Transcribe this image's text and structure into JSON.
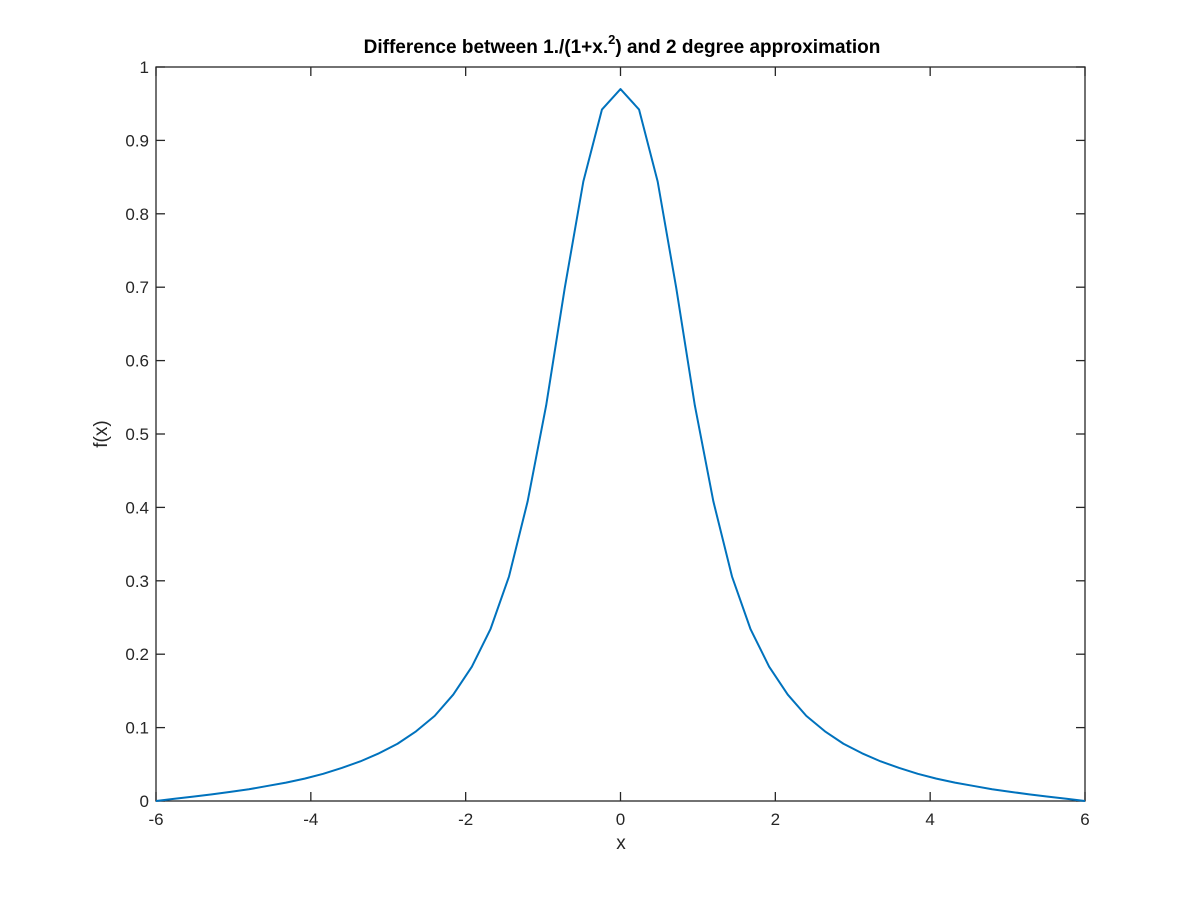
{
  "chart_data": {
    "type": "line",
    "title": {
      "main": "Difference between 1./(1+x.",
      "sup": "2",
      "rest": ") and 2 degree approximation"
    },
    "xlabel": "x",
    "ylabel": "f(x)",
    "xlim": [
      -6,
      6
    ],
    "ylim": [
      0,
      1
    ],
    "xticks": [
      -6,
      -4,
      -2,
      0,
      2,
      4,
      6
    ],
    "xtick_labels": [
      "-6",
      "-4",
      "-2",
      "0",
      "2",
      "4",
      "6"
    ],
    "yticks": [
      0,
      0.1,
      0.2,
      0.3,
      0.4,
      0.5,
      0.6,
      0.7,
      0.8,
      0.9,
      1
    ],
    "ytick_labels": [
      "0",
      "0.1",
      "0.2",
      "0.3",
      "0.4",
      "0.5",
      "0.6",
      "0.7",
      "0.8",
      "0.9",
      "1"
    ],
    "grid": false,
    "box": true,
    "line_color": "#0072BD",
    "axis_color": "#262626",
    "series": [
      {
        "x": [
          -6,
          -5.76,
          -5.52,
          -5.28,
          -5.04,
          -4.8,
          -4.56,
          -4.32,
          -4.08,
          -3.84,
          -3.6,
          -3.36,
          -3.12,
          -2.88,
          -2.64,
          -2.4,
          -2.16,
          -1.92,
          -1.68,
          -1.44,
          -1.2,
          -0.96,
          -0.72,
          -0.48,
          -0.24,
          0,
          0.24,
          0.48,
          0.72,
          0.96,
          1.2,
          1.44,
          1.68,
          1.92,
          2.16,
          2.4,
          2.64,
          2.88,
          3.12,
          3.36,
          3.6,
          3.84,
          4.08,
          4.32,
          4.56,
          4.8,
          5.04,
          5.28,
          5.52,
          5.76,
          6
        ],
        "y": [
          0,
          0.003,
          0.006,
          0.009,
          0.0125,
          0.016,
          0.0205,
          0.025,
          0.0305,
          0.037,
          0.045,
          0.054,
          0.065,
          0.078,
          0.095,
          0.116,
          0.145,
          0.183,
          0.234,
          0.306,
          0.408,
          0.539,
          0.699,
          0.844,
          0.942,
          0.97,
          0.942,
          0.844,
          0.699,
          0.539,
          0.408,
          0.306,
          0.234,
          0.183,
          0.145,
          0.116,
          0.095,
          0.078,
          0.065,
          0.054,
          0.045,
          0.037,
          0.0305,
          0.025,
          0.0205,
          0.016,
          0.0125,
          0.009,
          0.006,
          0.003,
          0
        ]
      }
    ]
  }
}
